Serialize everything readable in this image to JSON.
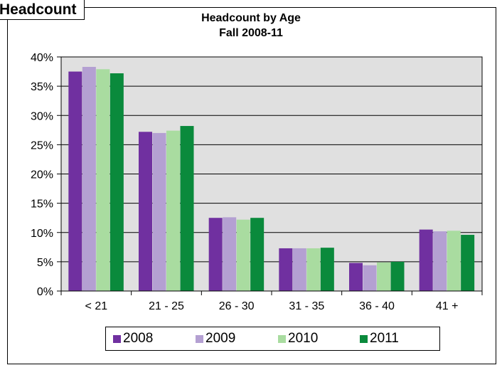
{
  "tab_label": "Headcount",
  "chart_data": {
    "type": "bar",
    "title": "Headcount by Age",
    "subtitle": "Fall 2008-11",
    "xlabel": "",
    "ylabel": "",
    "categories": [
      "< 21",
      "21 - 25",
      "26 - 30",
      "31 - 35",
      "36 - 40",
      "41 +"
    ],
    "series": [
      {
        "name": "2008",
        "color": "#7030a0",
        "values": [
          37.5,
          27.2,
          12.5,
          7.3,
          4.8,
          10.5
        ]
      },
      {
        "name": "2009",
        "color": "#b4a0d2",
        "values": [
          38.3,
          27.0,
          12.6,
          7.3,
          4.4,
          10.2
        ]
      },
      {
        "name": "2010",
        "color": "#a9dca0",
        "values": [
          37.9,
          27.4,
          12.2,
          7.3,
          4.9,
          10.3
        ]
      },
      {
        "name": "2011",
        "color": "#0a8a3c",
        "values": [
          37.2,
          28.2,
          12.5,
          7.4,
          5.0,
          9.6
        ]
      }
    ],
    "ylim": [
      0,
      40
    ],
    "ytick_labels": [
      "0%",
      "5%",
      "10%",
      "15%",
      "20%",
      "25%",
      "30%",
      "35%",
      "40%"
    ],
    "grid": true,
    "plot_background": "#e0e0e0",
    "legend_position": "bottom"
  }
}
